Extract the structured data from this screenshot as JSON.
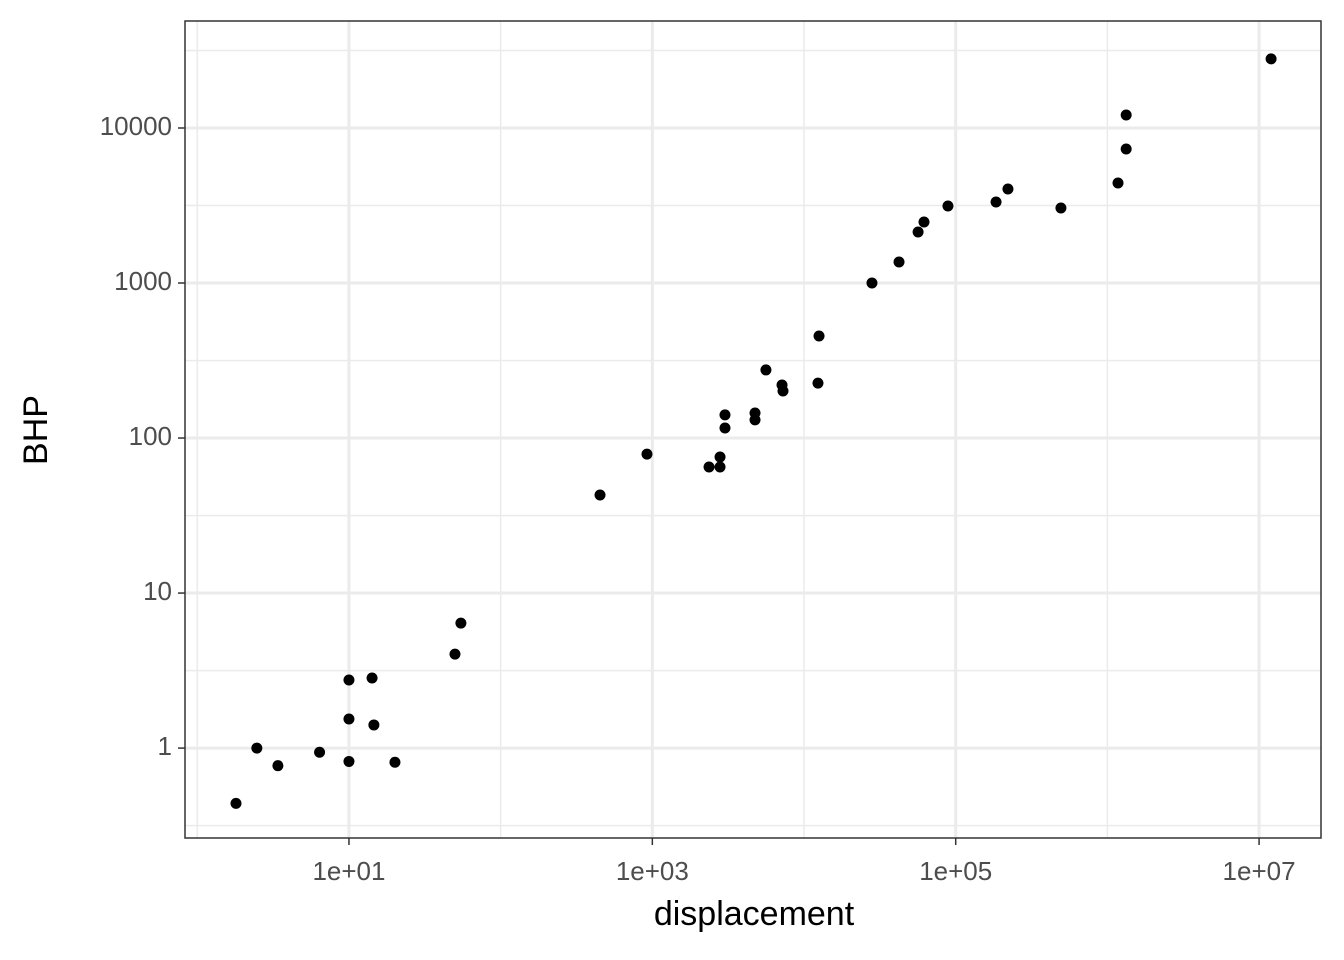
{
  "chart_data": {
    "type": "scatter",
    "x_label": "displacement",
    "y_label": "BHP",
    "x": [
      1.8,
      2.47,
      3.4,
      6.4,
      10,
      10,
      10,
      14.2,
      14.6,
      20.1,
      50,
      54.7,
      452,
      922,
      2365,
      2795,
      2795,
      3013,
      3013,
      4753,
      4753,
      5610,
      7160,
      7270,
      12360,
      12560,
      28050,
      42300,
      56500,
      61800,
      88900,
      184500,
      221000,
      494000,
      1175000,
      1330000,
      1330000,
      12000000
    ],
    "values": [
      0.44,
      1.0,
      0.77,
      0.94,
      0.82,
      1.54,
      2.75,
      2.83,
      1.41,
      0.81,
      4.04,
      6.4,
      42.9,
      78.8,
      65,
      65,
      75.4,
      116,
      141,
      131,
      145,
      275,
      220,
      201,
      226,
      455,
      1000,
      1366,
      2133,
      2476,
      3140,
      3333,
      4040,
      3048,
      4420,
      12130,
      7320,
      27900
    ],
    "color": "#000000",
    "xlog": true,
    "ylog": true,
    "grid": true,
    "xlim": [
      0.83,
      25600000
    ],
    "ylim": [
      0.263,
      49000
    ],
    "xticks": [
      {
        "value": 10,
        "label": "1e+01"
      },
      {
        "value": 1000,
        "label": "1e+03"
      },
      {
        "value": 100000,
        "label": "1e+05"
      },
      {
        "value": 10000000,
        "label": "1e+07"
      }
    ],
    "yticks": [
      1,
      10,
      100,
      1000,
      10000
    ],
    "minor_xticks": [
      1,
      100,
      10000,
      1000000
    ],
    "minor_yticks": [
      0.316,
      3.16,
      31.6,
      316,
      3162,
      31623
    ]
  }
}
